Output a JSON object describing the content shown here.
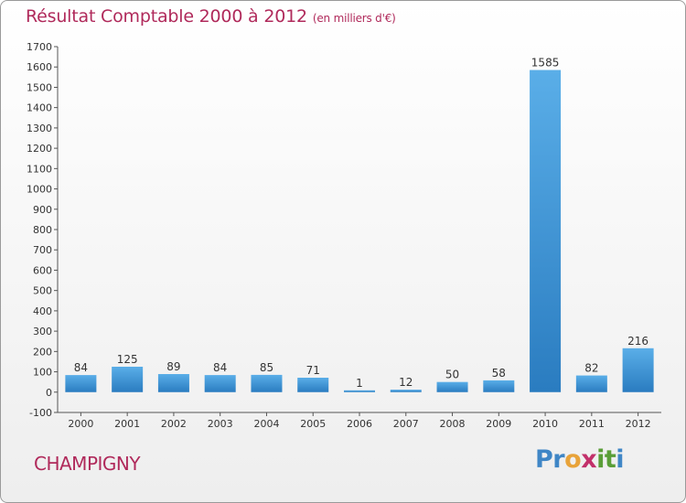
{
  "title": "Résultat Comptable 2000 à 2012",
  "unit_note": "(en milliers d'€)",
  "location": "CHAMPIGNY",
  "brand": "Proxiti",
  "colors": {
    "title": "#b02a5b",
    "bar_light": "#5aaee8",
    "bar_dark": "#2a7cc0",
    "axis": "#555555"
  },
  "chart_data": {
    "type": "bar",
    "categories": [
      "2000",
      "2001",
      "2002",
      "2003",
      "2004",
      "2005",
      "2006",
      "2007",
      "2008",
      "2009",
      "2010",
      "2011",
      "2012"
    ],
    "values": [
      84,
      125,
      89,
      84,
      85,
      71,
      1,
      12,
      50,
      58,
      1585,
      82,
      216
    ],
    "title": "Résultat Comptable 2000 à 2012",
    "ylim": [
      -100,
      1700
    ],
    "yticks": [
      -100,
      0,
      100,
      200,
      300,
      400,
      500,
      600,
      700,
      800,
      900,
      1000,
      1100,
      1200,
      1300,
      1400,
      1500,
      1600,
      1700
    ],
    "grid": false
  }
}
